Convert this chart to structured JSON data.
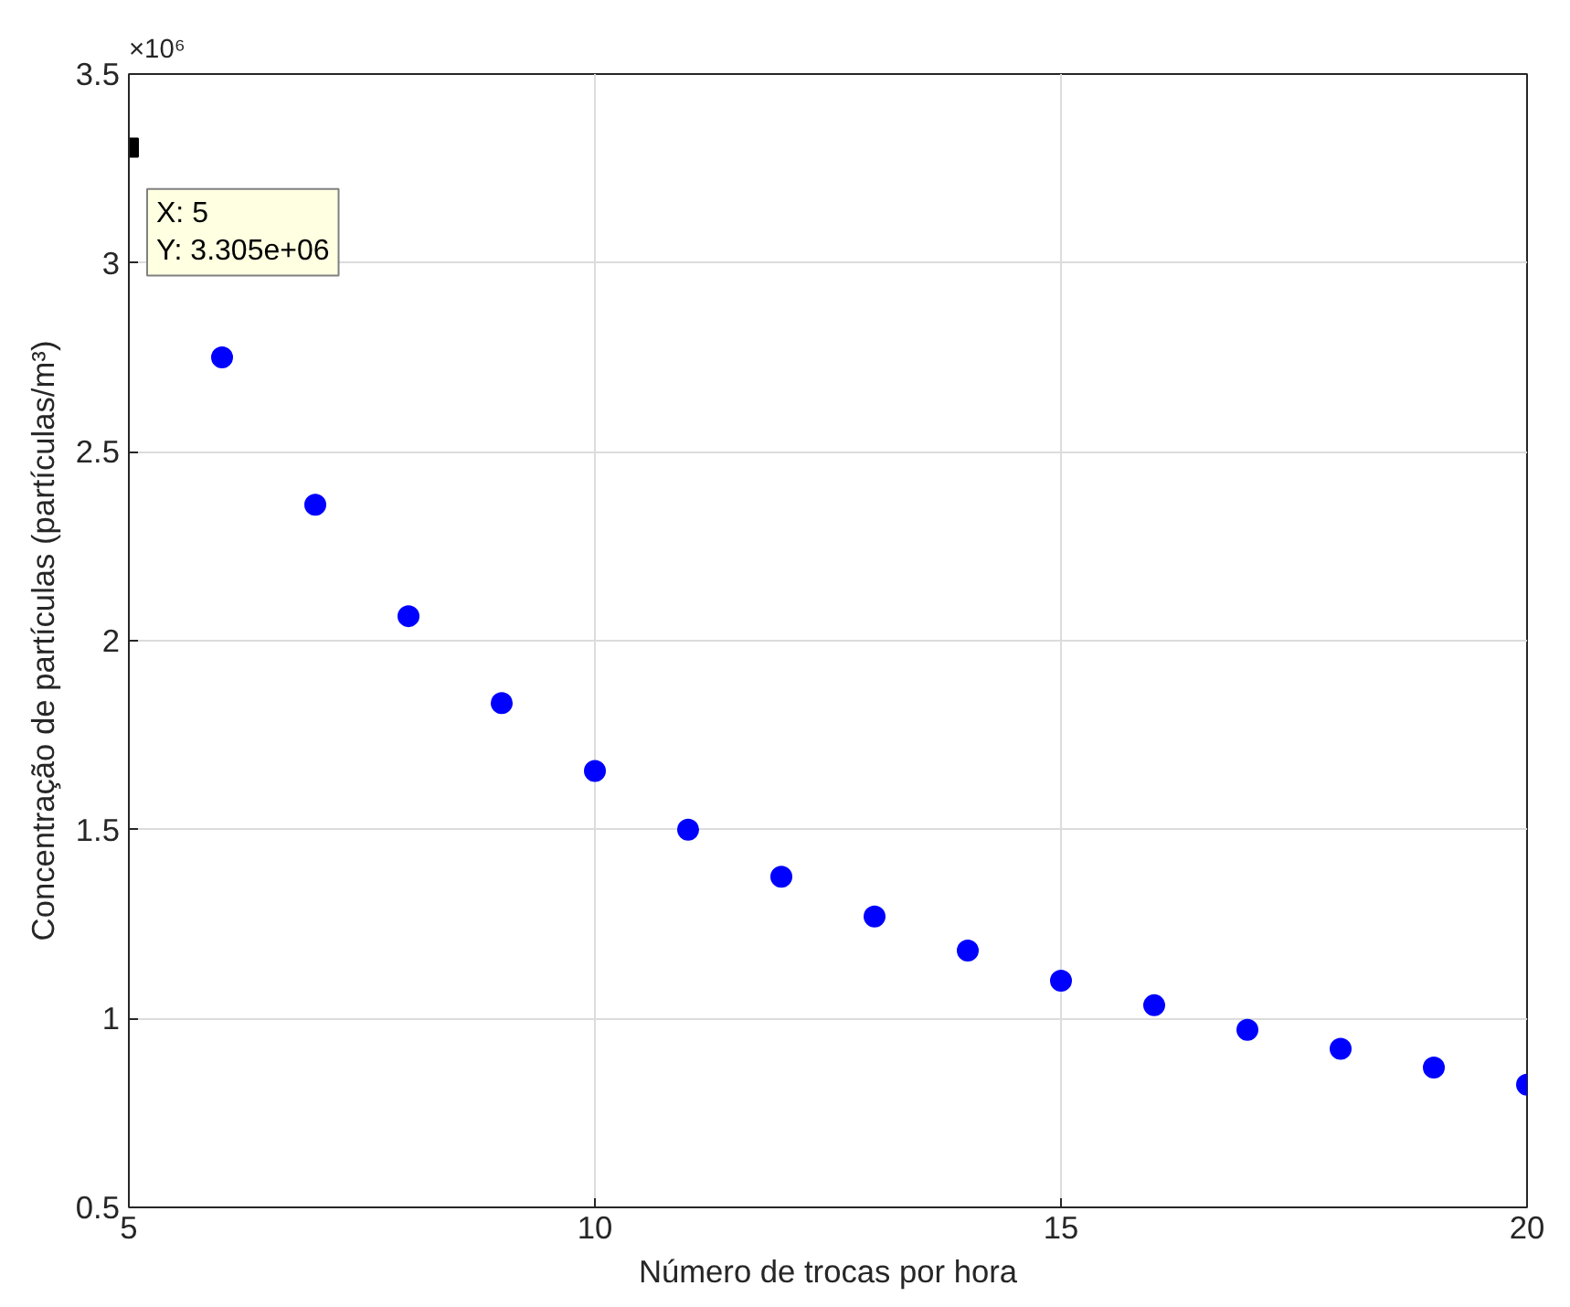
{
  "chart_data": {
    "type": "scatter",
    "xlabel": "Número de trocas por hora",
    "ylabel": "Concentração de partículas (partículas/m³)",
    "xlim": [
      5,
      20
    ],
    "xticks": [
      5,
      10,
      15,
      20
    ],
    "ylim": [
      0.5,
      3.5
    ],
    "yticks": [
      0.5,
      1,
      1.5,
      2,
      2.5,
      3,
      3.5
    ],
    "grid": true,
    "marker": "circle",
    "series": [
      {
        "color": "#0000ff",
        "x": [
          6,
          7,
          8,
          9,
          10,
          11,
          12,
          13,
          14,
          15,
          16,
          17,
          18,
          19,
          20
        ],
        "values": [
          2.75,
          2.36,
          2.065,
          1.835,
          1.655,
          1.5,
          1.375,
          1.27,
          1.18,
          1.1,
          1.035,
          0.97,
          0.92,
          0.87,
          0.825
        ]
      },
      {
        "color": "#000000",
        "marker": "square",
        "x": [
          5
        ],
        "values": [
          3.305
        ]
      }
    ],
    "annotations": [
      "×10⁶",
      {
        "text": "X: 5\nY: 3.305e+06",
        "x": 5,
        "y": 3.305
      }
    ]
  }
}
